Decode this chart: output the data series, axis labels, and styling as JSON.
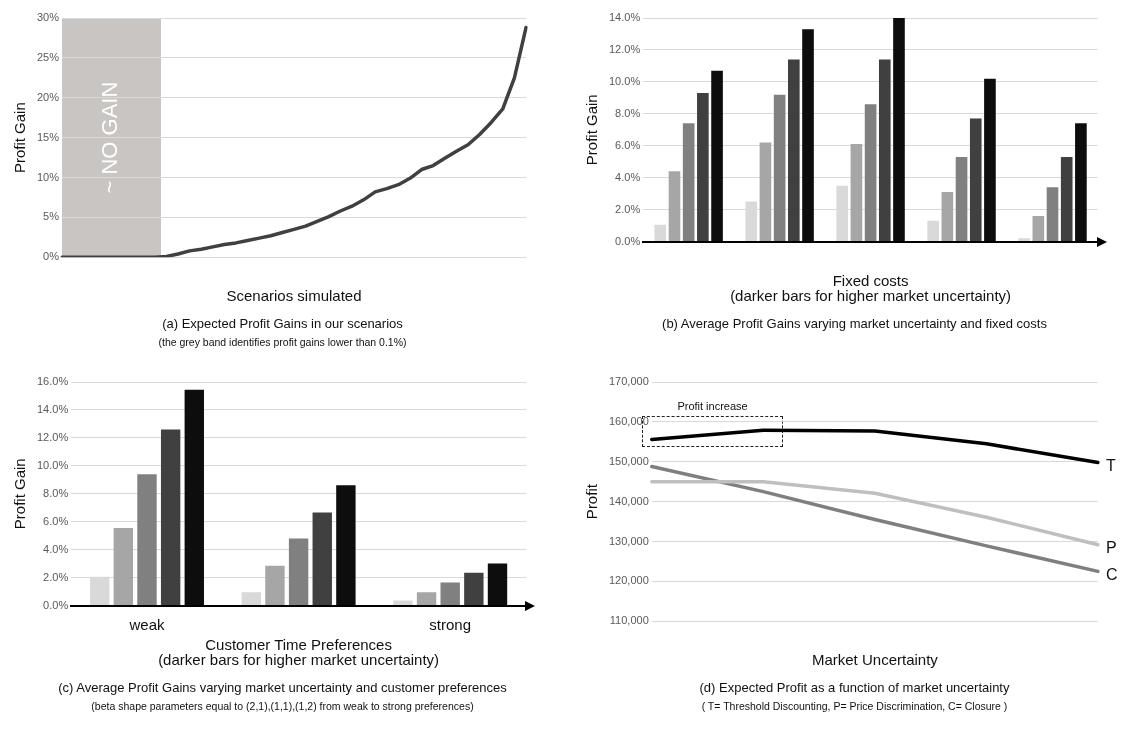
{
  "chart_data": [
    {
      "type": "line",
      "title": "(a) Expected Profit Gains in our scenarios",
      "subtitle": "(the grey band identifies profit gains lower than 0.1%)",
      "xlabel": "Scenarios simulated",
      "ylabel": "Profit Gain",
      "categories": [
        null,
        null,
        null,
        null,
        null,
        null,
        null,
        null,
        null,
        null,
        null,
        null,
        null,
        null,
        null,
        null,
        null,
        null,
        null,
        null,
        null,
        null,
        null,
        null,
        null,
        null,
        null,
        null,
        null,
        null,
        null,
        null,
        null,
        null,
        null,
        null,
        null,
        null,
        null,
        null,
        null
      ],
      "series": [
        {
          "color": "#404040",
          "values": [
            0,
            0,
            0,
            0,
            0,
            0,
            0,
            0,
            0,
            0.1,
            0.4,
            0.8,
            1.0,
            1.3,
            1.6,
            1.8,
            2.1,
            2.4,
            2.7,
            3.1,
            3.5,
            3.9,
            4.5,
            5.1,
            5.8,
            6.4,
            7.2,
            8.2,
            8.6,
            9.1,
            9.9,
            11.0,
            11.5,
            12.4,
            13.3,
            14.1,
            15.4,
            16.9,
            18.6,
            22.5,
            28.8
          ]
        }
      ],
      "ylim": [
        0,
        30
      ],
      "yticks": [
        {
          "value": 0,
          "label": "0%"
        },
        {
          "value": 5,
          "label": "5%"
        },
        {
          "value": 10,
          "label": "10%"
        },
        {
          "value": 15,
          "label": "15%"
        },
        {
          "value": 20,
          "label": "20%"
        },
        {
          "value": 25,
          "label": "25%"
        },
        {
          "value": 30,
          "label": "30%"
        }
      ],
      "annotations": [
        "~ NO GAIN"
      ],
      "grid": "y",
      "legend": false,
      "marker": "none"
    },
    {
      "type": "bar",
      "title": "(b) Average Profit Gains varying market uncertainty and fixed costs",
      "xlabel": "Fixed costs\n(darker bars for higher market uncertainty)",
      "ylabel": "Profit Gain",
      "categories": [
        null,
        null,
        null,
        null,
        null
      ],
      "series": [
        {
          "color": "#d9d9d9",
          "values": [
            1.05,
            2.5,
            3.5,
            1.3,
            0.2
          ]
        },
        {
          "color": "#a6a6a6",
          "values": [
            4.4,
            6.2,
            6.1,
            3.1,
            1.6
          ]
        },
        {
          "color": "#808080",
          "values": [
            7.4,
            9.2,
            8.6,
            5.3,
            3.4
          ]
        },
        {
          "color": "#404040",
          "values": [
            9.3,
            11.4,
            11.4,
            7.7,
            5.3
          ]
        },
        {
          "color": "#0d0d0d",
          "values": [
            10.7,
            13.3,
            14.0,
            10.2,
            7.4
          ]
        }
      ],
      "ylim": [
        0,
        14
      ],
      "yticks": [
        {
          "value": 0,
          "label": "0.0%"
        },
        {
          "value": 2,
          "label": "2.0%"
        },
        {
          "value": 4,
          "label": "4.0%"
        },
        {
          "value": 6,
          "label": "6.0%"
        },
        {
          "value": 8,
          "label": "8.0%"
        },
        {
          "value": 10,
          "label": "10.0%"
        },
        {
          "value": 12,
          "label": "12.0%"
        },
        {
          "value": 14,
          "label": "14.0%"
        }
      ],
      "grid": "y",
      "legend": false
    },
    {
      "type": "bar",
      "title": "(c) Average Profit Gains varying market uncertainty and customer preferences",
      "subtitle": "(beta shape parameters equal to (2,1),(1,1),(1,2) from weak to strong preferences)",
      "xlabel": "Customer Time Preferences\n(darker bars for higher market uncertainty)",
      "ylabel": "Profit Gain",
      "categories": [
        "weak",
        null,
        "strong"
      ],
      "series": [
        {
          "color": "#d9d9d9",
          "values": [
            2.05,
            0.95,
            0.35
          ]
        },
        {
          "color": "#a6a6a6",
          "values": [
            5.55,
            2.85,
            0.95
          ]
        },
        {
          "color": "#808080",
          "values": [
            9.4,
            4.8,
            1.65
          ]
        },
        {
          "color": "#404040",
          "values": [
            12.6,
            6.65,
            2.35
          ]
        },
        {
          "color": "#0d0d0d",
          "values": [
            15.45,
            8.6,
            3.0
          ]
        }
      ],
      "ylim": [
        0,
        16
      ],
      "yticks": [
        {
          "value": 0,
          "label": "0.0%"
        },
        {
          "value": 2,
          "label": "2.0%"
        },
        {
          "value": 4,
          "label": "4.0%"
        },
        {
          "value": 6,
          "label": "6.0%"
        },
        {
          "value": 8,
          "label": "8.0%"
        },
        {
          "value": 10,
          "label": "10.0%"
        },
        {
          "value": 12,
          "label": "12.0%"
        },
        {
          "value": 14,
          "label": "14.0%"
        },
        {
          "value": 16,
          "label": "16.0%"
        }
      ],
      "grid": "y",
      "legend": false
    },
    {
      "type": "line",
      "title": "(d) Expected Profit as a function of market uncertainty",
      "subtitle": "( T= Threshold Discounting, P= Price Discrimination, C= Closure )",
      "xlabel": "Market Uncertainty",
      "ylabel": "Profit",
      "categories": [
        null,
        null,
        null,
        null,
        null
      ],
      "series": [
        {
          "name": "T",
          "color": "#000000",
          "values": [
            155600,
            157900,
            157700,
            154500,
            149800
          ]
        },
        {
          "name": "P",
          "color": "#bfbfbf",
          "values": [
            145000,
            145000,
            142100,
            136100,
            129200
          ]
        },
        {
          "name": "C",
          "color": "#7f7f7f",
          "values": [
            148800,
            142500,
            135500,
            128900,
            122500
          ]
        }
      ],
      "ylim": [
        110000,
        170000
      ],
      "yticks": [
        {
          "value": 110000,
          "label": "110,000"
        },
        {
          "value": 120000,
          "label": "120,000"
        },
        {
          "value": 130000,
          "label": "130,000"
        },
        {
          "value": 140000,
          "label": "140,000"
        },
        {
          "value": 150000,
          "label": "150,000"
        },
        {
          "value": 160000,
          "label": "160,000"
        },
        {
          "value": 170000,
          "label": "170,000"
        }
      ],
      "annotations": [
        "Profit increase"
      ],
      "grid": "y",
      "legend": false,
      "marker": "none"
    }
  ]
}
